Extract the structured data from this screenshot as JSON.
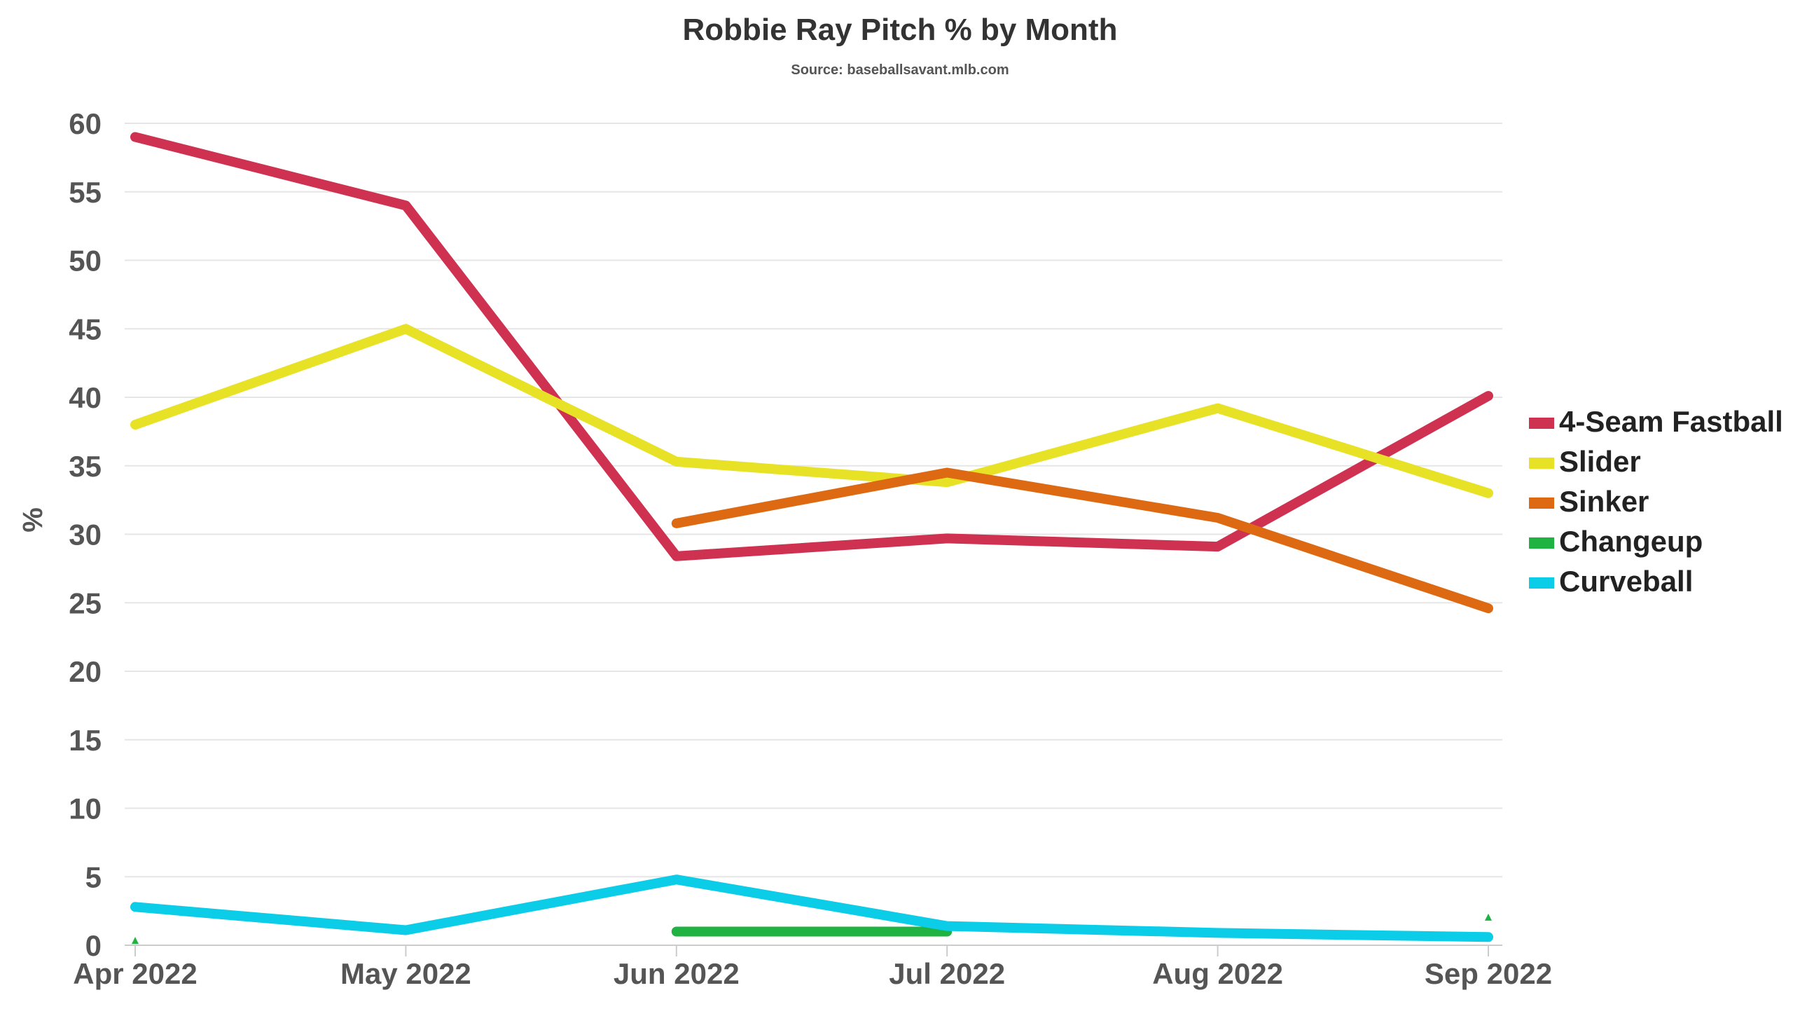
{
  "chart_data": {
    "type": "line",
    "title": "Robbie Ray Pitch % by Month",
    "subtitle": "Source: baseballsavant.mlb.com",
    "xlabel": "",
    "ylabel": "%",
    "categories": [
      "Apr 2022",
      "May 2022",
      "Jun 2022",
      "Jul 2022",
      "Aug 2022",
      "Sep 2022"
    ],
    "ylim": [
      0,
      60
    ],
    "yticks": [
      0,
      5,
      10,
      15,
      20,
      25,
      30,
      35,
      40,
      45,
      50,
      55,
      60
    ],
    "grid": true,
    "legend_position": "right",
    "series": [
      {
        "name": "4-Seam Fastball",
        "color": "#cf3150",
        "values": [
          59,
          54,
          28.4,
          29.7,
          29.1,
          40.1
        ]
      },
      {
        "name": "Slider",
        "color": "#e8e227",
        "values": [
          38,
          45,
          35.3,
          33.8,
          39.2,
          33
        ]
      },
      {
        "name": "Sinker",
        "color": "#dd6a12",
        "values": [
          null,
          null,
          30.8,
          34.5,
          31.2,
          24.6
        ]
      },
      {
        "name": "Changeup",
        "color": "#1fb342",
        "values": [
          0.3,
          null,
          1,
          1,
          null,
          2
        ]
      },
      {
        "name": "Curveball",
        "color": "#0bcde8",
        "values": [
          2.8,
          1.1,
          4.8,
          1.4,
          0.9,
          0.6
        ]
      }
    ]
  }
}
